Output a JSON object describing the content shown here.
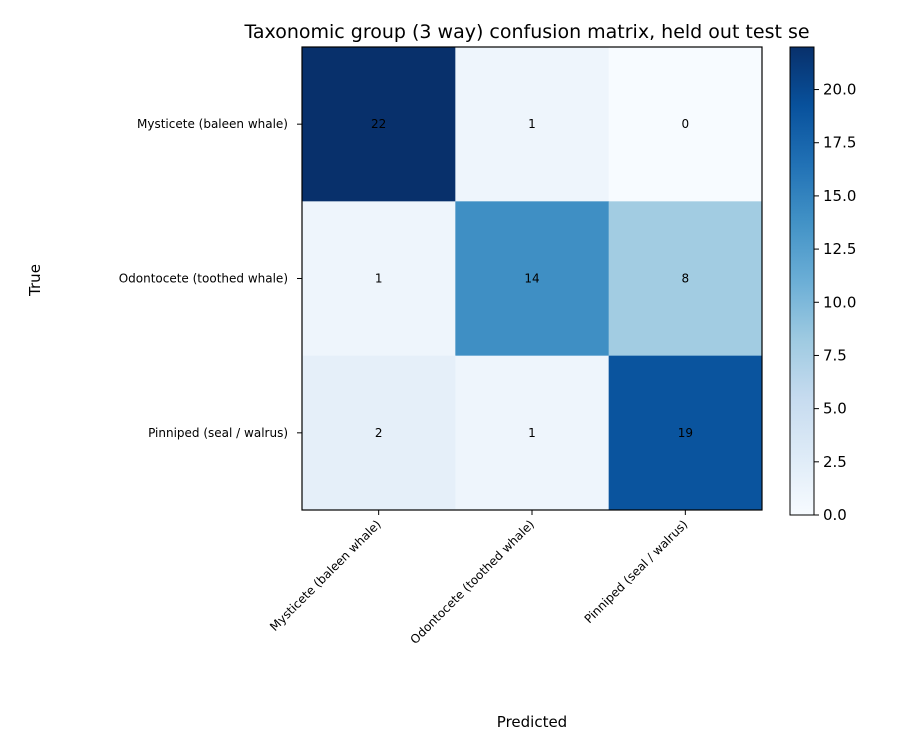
{
  "chart_data": {
    "type": "heatmap",
    "title": "Taxonomic group (3 way) confusion matrix, held out test se",
    "xlabel": "Predicted",
    "ylabel": "True",
    "x_categories": [
      "Mysticete (baleen whale)",
      "Odontocete (toothed whale)",
      "Pinniped (seal / walrus)"
    ],
    "y_categories": [
      "Mysticete (baleen whale)",
      "Odontocete (toothed whale)",
      "Pinniped (seal / walrus)"
    ],
    "values": [
      [
        22,
        1,
        0
      ],
      [
        1,
        14,
        8
      ],
      [
        2,
        1,
        19
      ]
    ],
    "colormap": "Blues",
    "color_range": [
      0,
      22
    ],
    "colorbar_ticks": [
      "0.0",
      "2.5",
      "5.0",
      "7.5",
      "10.0",
      "12.5",
      "15.0",
      "17.5",
      "20.0"
    ],
    "grid": false
  }
}
